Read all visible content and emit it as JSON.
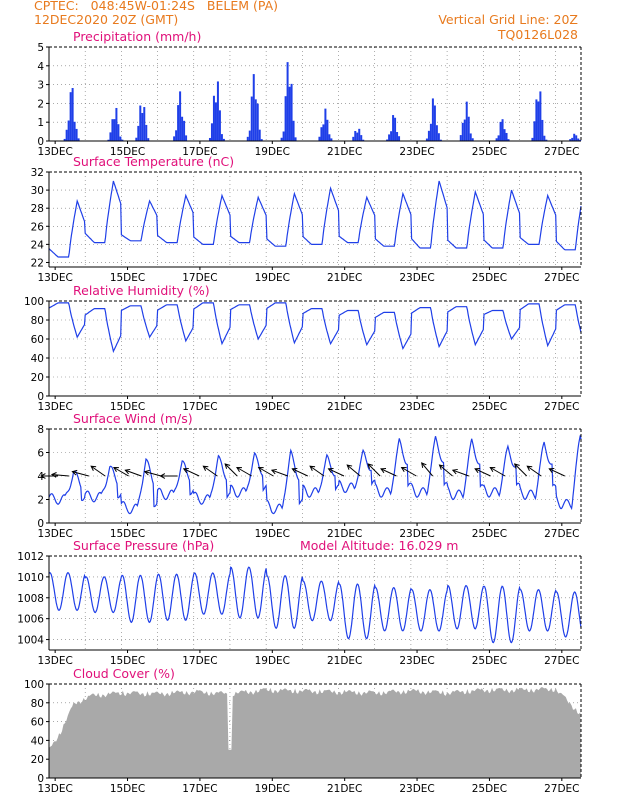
{
  "header": {
    "station_line": "CPTEC:   048:45W-01:24S   BELEM (PA)",
    "date_line": "12DEC2020 20Z (GMT)",
    "grid_note": "Vertical Grid Line: 20Z",
    "code": "TQ0126L028"
  },
  "colors": {
    "series": "#1f3fe8",
    "cloud": "#a9a9a9",
    "title": "#e0107a",
    "header": "#e87a1e"
  },
  "chart_data": [
    {
      "type": "bar",
      "title": "Precipitation (mm/h)",
      "xlabel": "",
      "ylabel": "",
      "x_unit": "days since 12DEC2020 20Z",
      "xlim": [
        0,
        14.7
      ],
      "ylim": [
        0,
        5
      ],
      "yticks": [
        "0",
        "1",
        "2",
        "3",
        "4",
        "5"
      ],
      "xticks": [
        "13DEC",
        "15DEC",
        "17DEC",
        "19DEC",
        "21DEC",
        "23DEC",
        "25DEC",
        "27DEC"
      ],
      "grid": true,
      "peaks": [
        {
          "t": 0.6,
          "v": 3.1
        },
        {
          "t": 1.8,
          "v": 2.0
        },
        {
          "t": 2.55,
          "v": 2.5
        },
        {
          "t": 3.6,
          "v": 2.8
        },
        {
          "t": 4.6,
          "v": 3.8
        },
        {
          "t": 5.65,
          "v": 4.0
        },
        {
          "t": 6.6,
          "v": 5.0
        },
        {
          "t": 7.6,
          "v": 1.8
        },
        {
          "t": 8.5,
          "v": 0.8
        },
        {
          "t": 9.5,
          "v": 1.5
        },
        {
          "t": 10.6,
          "v": 2.4
        },
        {
          "t": 11.5,
          "v": 2.2
        },
        {
          "t": 12.5,
          "v": 1.3
        },
        {
          "t": 13.5,
          "v": 3.3
        },
        {
          "t": 14.5,
          "v": 0.4
        }
      ]
    },
    {
      "type": "line",
      "title": "Surface Temperature (nC)",
      "xlabel": "",
      "ylabel": "",
      "xlim": [
        0,
        14.7
      ],
      "ylim": [
        21.5,
        32
      ],
      "yticks": [
        "22",
        "24",
        "26",
        "28",
        "30",
        "32"
      ],
      "ytick_values": [
        22,
        24,
        26,
        28,
        30,
        32
      ],
      "xticks": [
        "13DEC",
        "15DEC",
        "17DEC",
        "19DEC",
        "21DEC",
        "23DEC",
        "25DEC",
        "27DEC"
      ],
      "grid": true,
      "daily_max": [
        28.8,
        31.0,
        28.8,
        29.4,
        29.4,
        29.2,
        29.6,
        30.2,
        29.2,
        29.6,
        31.0,
        29.8,
        30.0,
        29.4,
        30.2
      ],
      "daily_min": [
        22.6,
        24.2,
        24.4,
        24.2,
        24.0,
        24.2,
        23.8,
        24.0,
        24.2,
        23.8,
        23.6,
        23.6,
        23.6,
        24.0,
        23.4
      ]
    },
    {
      "type": "line",
      "title": "Relative Humidity (%)",
      "xlabel": "",
      "ylabel": "",
      "xlim": [
        0,
        14.7
      ],
      "ylim": [
        0,
        100
      ],
      "yticks": [
        "0",
        "20",
        "40",
        "60",
        "80",
        "100"
      ],
      "ytick_values": [
        0,
        20,
        40,
        60,
        80,
        100
      ],
      "xticks": [
        "13DEC",
        "15DEC",
        "17DEC",
        "19DEC",
        "21DEC",
        "23DEC",
        "25DEC",
        "27DEC"
      ],
      "grid": true,
      "daily_max": [
        98,
        92,
        95,
        96,
        98,
        96,
        98,
        92,
        90,
        88,
        93,
        94,
        90,
        97,
        96
      ],
      "daily_min": [
        62,
        47,
        62,
        58,
        55,
        60,
        56,
        55,
        54,
        50,
        52,
        54,
        60,
        53,
        55
      ]
    },
    {
      "type": "line",
      "title": "Surface Wind (m/s)",
      "xlabel": "",
      "ylabel": "",
      "xlim": [
        0,
        14.7
      ],
      "ylim": [
        0,
        8
      ],
      "yticks": [
        "0",
        "2",
        "4",
        "6",
        "8"
      ],
      "ytick_values": [
        0,
        2,
        4,
        6,
        8
      ],
      "xticks": [
        "13DEC",
        "15DEC",
        "17DEC",
        "19DEC",
        "21DEC",
        "23DEC",
        "25DEC",
        "27DEC"
      ],
      "grid": true,
      "daily_max": [
        4.2,
        4.6,
        5.2,
        5.0,
        5.4,
        5.6,
        5.8,
        5.4,
        5.8,
        6.8,
        7.0,
        6.8,
        6.2,
        6.6,
        7.2
      ],
      "daily_min": [
        2.0,
        2.2,
        1.2,
        2.4,
        2.0,
        2.6,
        1.2,
        2.6,
        3.0,
        2.6,
        2.6,
        2.4,
        2.6,
        2.4,
        1.6
      ],
      "arrows": [
        {
          "t": 0.25,
          "ang": 180
        },
        {
          "t": 0.55,
          "ang": 185
        },
        {
          "t": 1.1,
          "ang": 195
        },
        {
          "t": 1.55,
          "ang": 215
        },
        {
          "t": 2.2,
          "ang": 210
        },
        {
          "t": 2.55,
          "ang": 200
        },
        {
          "t": 3.1,
          "ang": 195
        },
        {
          "t": 3.55,
          "ang": 180
        },
        {
          "t": 4.15,
          "ang": 205
        },
        {
          "t": 4.65,
          "ang": 215
        },
        {
          "t": 5.2,
          "ang": 225
        },
        {
          "t": 5.6,
          "ang": 210
        },
        {
          "t": 6.2,
          "ang": 210
        },
        {
          "t": 6.6,
          "ang": 200
        },
        {
          "t": 7.15,
          "ang": 205
        },
        {
          "t": 7.6,
          "ang": 215
        },
        {
          "t": 8.15,
          "ang": 205
        },
        {
          "t": 8.6,
          "ang": 220
        },
        {
          "t": 9.15,
          "ang": 225
        },
        {
          "t": 9.6,
          "ang": 205
        },
        {
          "t": 10.15,
          "ang": 210
        },
        {
          "t": 10.6,
          "ang": 230
        },
        {
          "t": 11.15,
          "ang": 220
        },
        {
          "t": 11.6,
          "ang": 200
        },
        {
          "t": 12.2,
          "ang": 205
        },
        {
          "t": 12.6,
          "ang": 210
        },
        {
          "t": 13.2,
          "ang": 225
        },
        {
          "t": 13.6,
          "ang": 215
        },
        {
          "t": 14.25,
          "ang": 205
        }
      ]
    },
    {
      "type": "line",
      "title": "Surface Pressure (hPa)",
      "annotation": "Model Altitude: 16.029 m",
      "xlabel": "",
      "ylabel": "",
      "xlim": [
        0,
        14.7
      ],
      "ylim": [
        1003,
        1012
      ],
      "yticks": [
        "1004",
        "1006",
        "1008",
        "1010",
        "1012"
      ],
      "ytick_values": [
        1004,
        1006,
        1008,
        1010,
        1012
      ],
      "xticks": [
        "13DEC",
        "15DEC",
        "17DEC",
        "19DEC",
        "21DEC",
        "23DEC",
        "25DEC",
        "27DEC"
      ],
      "grid": true,
      "daily_max": [
        1010.6,
        1010.2,
        1010.4,
        1010.5,
        1010.6,
        1011.2,
        1010.4,
        1009.8,
        1009.6,
        1009.2,
        1009.0,
        1009.4,
        1009.4,
        1009.0,
        1008.8
      ],
      "daily_min": [
        1006.6,
        1006.4,
        1005.4,
        1005.6,
        1006.2,
        1005.8,
        1004.8,
        1005.6,
        1003.8,
        1004.6,
        1004.6,
        1004.8,
        1003.4,
        1004.6,
        1004.0
      ]
    },
    {
      "type": "area",
      "title": "Cloud Cover (%)",
      "xlabel": "",
      "ylabel": "",
      "xlim": [
        0,
        14.7
      ],
      "ylim": [
        0,
        100
      ],
      "yticks": [
        "0",
        "20",
        "40",
        "60",
        "80",
        "100"
      ],
      "ytick_values": [
        0,
        20,
        40,
        60,
        80,
        100
      ],
      "xticks": [
        "13DEC",
        "15DEC",
        "17DEC",
        "19DEC",
        "21DEC",
        "23DEC",
        "25DEC",
        "27DEC"
      ],
      "grid": true,
      "segments": [
        {
          "t": 0.0,
          "v": 32
        },
        {
          "t": 0.3,
          "v": 50
        },
        {
          "t": 0.7,
          "v": 82
        },
        {
          "t": 1.2,
          "v": 90
        },
        {
          "t": 2.0,
          "v": 93
        },
        {
          "t": 3.0,
          "v": 92
        },
        {
          "t": 4.0,
          "v": 94
        },
        {
          "t": 5.0,
          "v": 92
        },
        {
          "t": 6.0,
          "v": 96
        },
        {
          "t": 7.0,
          "v": 95
        },
        {
          "t": 8.0,
          "v": 94
        },
        {
          "t": 9.0,
          "v": 93
        },
        {
          "t": 10.0,
          "v": 95
        },
        {
          "t": 11.0,
          "v": 93
        },
        {
          "t": 12.0,
          "v": 96
        },
        {
          "t": 13.0,
          "v": 96
        },
        {
          "t": 14.0,
          "v": 97
        },
        {
          "t": 14.7,
          "v": 70
        }
      ]
    }
  ]
}
